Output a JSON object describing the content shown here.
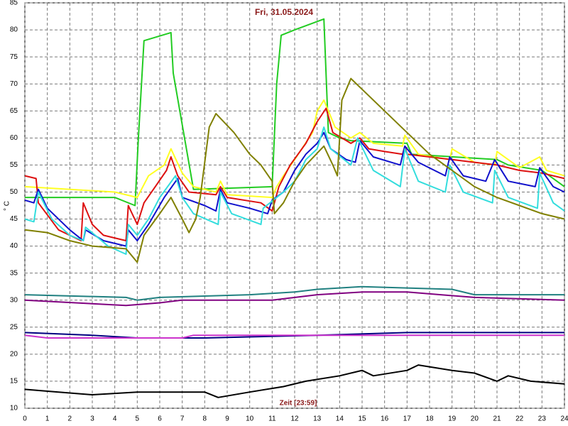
{
  "chart_data": {
    "type": "line",
    "title": "Fri, 31.05.2024",
    "x_label": "Zeit [23:59]",
    "y_label": "° C",
    "xlim": [
      0,
      24
    ],
    "ylim": [
      10,
      85
    ],
    "xticks": [
      0,
      1,
      2,
      3,
      4,
      5,
      6,
      7,
      8,
      9,
      10,
      11,
      12,
      13,
      14,
      15,
      16,
      17,
      18,
      19,
      20,
      21,
      22,
      23,
      24
    ],
    "yticks": [
      10,
      15,
      20,
      25,
      30,
      35,
      40,
      45,
      50,
      55,
      60,
      65,
      70,
      75,
      80,
      85
    ],
    "grid": true,
    "series": [
      {
        "color": "#22cc22",
        "x": [
          0,
          4,
          4.9,
          5.05,
          5.3,
          6.5,
          6.6,
          7.5,
          11,
          11.2,
          11.4,
          12,
          13.3,
          13.5,
          14,
          14.5,
          17,
          17.2,
          21,
          21.5,
          23,
          24
        ],
        "values": [
          49,
          49,
          47.5,
          60,
          78,
          79.5,
          72,
          50.5,
          51,
          70,
          79,
          80,
          82,
          61,
          60,
          59.5,
          59,
          57,
          56,
          55,
          54,
          51
        ]
      },
      {
        "color": "#ffff22",
        "x": [
          0,
          4,
          5,
          5.5,
          6.2,
          6.5,
          7,
          7.5,
          8.5,
          8.7,
          9,
          11,
          11.2,
          11.5,
          12,
          12.8,
          13,
          13.3,
          13.8,
          14.5,
          14.9,
          15.5,
          16.8,
          16.9,
          17.5,
          18.9,
          19,
          20,
          20.9,
          21,
          22,
          22.9,
          23.2,
          24
        ],
        "values": [
          51,
          50,
          49,
          53,
          55,
          58,
          53.5,
          51,
          50,
          52,
          49.5,
          49,
          51,
          53,
          56,
          61,
          65,
          67,
          62,
          60,
          61,
          59,
          58.5,
          60.5,
          57,
          56,
          58,
          55.5,
          55,
          57.5,
          54.5,
          56.5,
          54,
          53
        ]
      },
      {
        "color": "#dd1111",
        "x": [
          0,
          0.5,
          0.6,
          1.5,
          2.5,
          2.6,
          3,
          3.5,
          4.5,
          4.6,
          5,
          5.3,
          5.8,
          6.3,
          6.5,
          6.8,
          7.3,
          8.5,
          8.7,
          9,
          10.5,
          11,
          11.3,
          11.8,
          12.5,
          13,
          13.4,
          13.7,
          14.5,
          14.9,
          15.3,
          16,
          16.8,
          16.9,
          17,
          18,
          19,
          20,
          21,
          22,
          23,
          24
        ],
        "values": [
          53,
          52.5,
          48,
          43,
          41,
          48,
          44,
          42,
          41,
          47.5,
          44,
          48,
          51,
          54,
          56.5,
          53,
          50,
          49.5,
          51,
          49,
          48,
          46.5,
          51,
          55,
          59,
          63,
          65.5,
          61,
          59,
          60,
          58,
          57.5,
          57,
          58.5,
          57,
          56.5,
          56,
          55.5,
          55,
          54,
          53.5,
          52.5
        ]
      },
      {
        "color": "#1111cc",
        "x": [
          0,
          0.4,
          0.6,
          1,
          2,
          2.6,
          2.7,
          3.5,
          4.5,
          4.6,
          5,
          5.5,
          6.2,
          6.8,
          7,
          8,
          8.5,
          8.7,
          9,
          10,
          10.8,
          11,
          11.5,
          12,
          12.5,
          13,
          13.3,
          13.6,
          14.3,
          14.7,
          14.9,
          15.5,
          16.7,
          16.9,
          17.5,
          18.7,
          18.9,
          19.5,
          20.5,
          20.9,
          21.5,
          22.7,
          22.9,
          23.5,
          24
        ],
        "values": [
          48.5,
          48,
          50.5,
          47,
          43,
          41,
          43,
          41,
          40,
          43,
          41,
          44,
          49,
          52.5,
          49,
          47.5,
          46.5,
          50.5,
          48,
          47,
          46,
          48.5,
          50,
          54,
          57,
          59,
          61,
          58,
          56,
          55.5,
          59.5,
          56.5,
          55,
          58.5,
          55.5,
          53,
          56.5,
          53,
          52,
          56,
          52,
          51,
          54.5,
          51,
          50
        ]
      },
      {
        "color": "#33dddd",
        "x": [
          0,
          0.4,
          0.6,
          1.2,
          2,
          2.6,
          2.7,
          3.7,
          4.5,
          4.6,
          5,
          5.5,
          6,
          6.7,
          7,
          7.5,
          8.6,
          8.7,
          9.2,
          10.5,
          10.6,
          11.5,
          12,
          12.5,
          13,
          13.3,
          13.6,
          14.5,
          14.8,
          15.5,
          16.7,
          16.9,
          17.5,
          18.7,
          18.9,
          19.5,
          20.8,
          20.9,
          21.5,
          22.8,
          22.9,
          23.5,
          24
        ],
        "values": [
          45,
          44.5,
          50,
          45,
          42,
          41,
          43.5,
          40,
          38.5,
          44,
          42,
          45,
          49,
          53,
          49,
          46,
          44,
          50,
          46,
          44,
          47,
          50,
          52,
          56,
          58,
          62,
          58,
          55,
          60,
          54,
          51,
          58,
          52,
          50,
          55,
          50,
          48,
          54,
          49,
          47,
          53.5,
          48,
          46.5
        ]
      },
      {
        "color": "#808000",
        "x": [
          0,
          1,
          2,
          3,
          4.5,
          4.8,
          5,
          5.3,
          6,
          6.5,
          7,
          7.3,
          7.6,
          7.8,
          8.2,
          8.5,
          9.3,
          10,
          10.5,
          11,
          11.1,
          11.5,
          12,
          12.5,
          13.3,
          13.7,
          13.9,
          14.1,
          14.5,
          15,
          16,
          17,
          18,
          19,
          20,
          21,
          22,
          23,
          24
        ],
        "values": [
          43,
          42.5,
          41,
          40,
          39.5,
          38,
          37,
          42,
          46,
          49,
          45,
          42.5,
          45,
          49,
          62,
          64.5,
          61,
          57,
          55,
          52,
          46,
          48,
          52,
          55,
          58.5,
          55,
          53,
          67,
          71,
          69,
          65,
          61,
          57,
          54,
          51,
          49,
          47.5,
          46,
          45
        ]
      },
      {
        "color": "#208080",
        "x": [
          0,
          4.5,
          5,
          6,
          10,
          12,
          13,
          15,
          19,
          20,
          24
        ],
        "values": [
          31,
          30.5,
          30,
          30.5,
          31,
          31.5,
          32,
          32.5,
          32,
          31,
          31
        ]
      },
      {
        "color": "#800080",
        "x": [
          0,
          4.5,
          6,
          7,
          11,
          13,
          15,
          17,
          20,
          24
        ],
        "values": [
          30,
          29,
          29.5,
          30,
          30,
          31,
          31.5,
          31.5,
          30.5,
          30
        ]
      },
      {
        "color": "#000080",
        "x": [
          0,
          3,
          5,
          8,
          13,
          17,
          24
        ],
        "values": [
          24,
          23.5,
          23,
          23,
          23.5,
          24,
          24
        ]
      },
      {
        "color": "#cc33cc",
        "x": [
          0,
          1,
          7,
          7.5,
          12,
          24
        ],
        "values": [
          23.5,
          23,
          23,
          23.5,
          23.5,
          23.5
        ]
      },
      {
        "color": "#000000",
        "x": [
          0,
          1.5,
          3,
          5,
          8,
          8.6,
          10,
          11.5,
          12.5,
          14,
          15,
          15.5,
          17,
          17.5,
          19,
          20,
          21,
          21.5,
          22.5,
          24
        ],
        "values": [
          13.5,
          13,
          12.5,
          13,
          13,
          12,
          13,
          14,
          15,
          16,
          17,
          16,
          17,
          18,
          17,
          16.5,
          15,
          16,
          15,
          14.5
        ]
      }
    ]
  }
}
